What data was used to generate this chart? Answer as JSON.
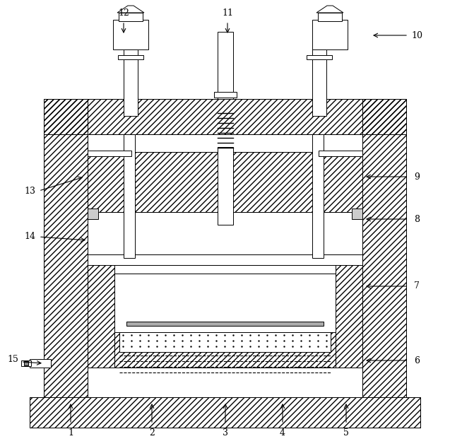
{
  "bg": "#ffffff",
  "lc": "#000000",
  "lw": 0.7,
  "fig_w": 6.37,
  "fig_h": 6.31,
  "dpi": 100
}
